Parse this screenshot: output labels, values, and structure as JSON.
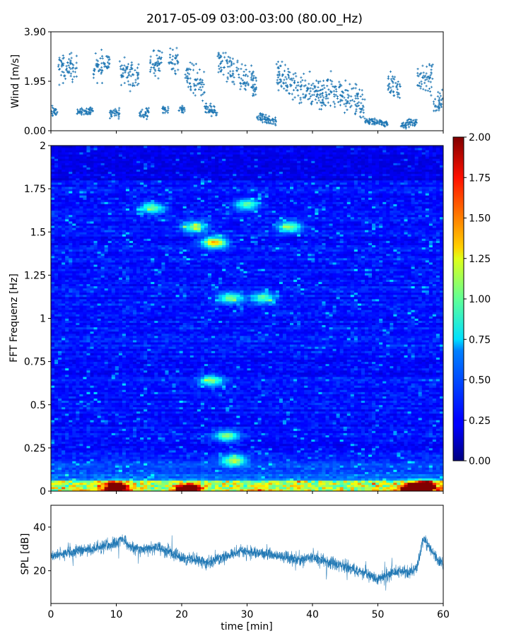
{
  "figure": {
    "title": "2017-05-09 03:00-03:00 (80.00_Hz)"
  },
  "chart_data": [
    {
      "type": "scatter",
      "panel": "wind",
      "ylabel": "Wind [m/s]",
      "xlabel": "",
      "xlim": [
        0,
        60
      ],
      "ylim": [
        0,
        3.9
      ],
      "yticks": [
        "0.00",
        "1.95",
        "3.90"
      ],
      "color": "#1f77b4",
      "segments": [
        {
          "x": [
            0,
            1
          ],
          "y": [
            0.75,
            0.75
          ],
          "spread": 0.35
        },
        {
          "x": [
            1,
            4
          ],
          "y": [
            2.4,
            2.5
          ],
          "spread": 0.8
        },
        {
          "x": [
            4,
            6.5
          ],
          "y": [
            0.75,
            0.8
          ],
          "spread": 0.2
        },
        {
          "x": [
            6.5,
            9
          ],
          "y": [
            2.5,
            2.6
          ],
          "spread": 0.8
        },
        {
          "x": [
            9,
            10.5
          ],
          "y": [
            0.7,
            0.7
          ],
          "spread": 0.3
        },
        {
          "x": [
            10.5,
            13.5
          ],
          "y": [
            2.3,
            2.2
          ],
          "spread": 0.8
        },
        {
          "x": [
            13.5,
            15
          ],
          "y": [
            0.7,
            0.7
          ],
          "spread": 0.3
        },
        {
          "x": [
            15,
            17
          ],
          "y": [
            2.6,
            2.7
          ],
          "spread": 0.8
        },
        {
          "x": [
            17,
            18
          ],
          "y": [
            0.85,
            0.85
          ],
          "spread": 0.2
        },
        {
          "x": [
            18,
            19.5
          ],
          "y": [
            2.8,
            2.7
          ],
          "spread": 0.7
        },
        {
          "x": [
            19.5,
            20.5
          ],
          "y": [
            0.85,
            0.85
          ],
          "spread": 0.2
        },
        {
          "x": [
            20.5,
            23.5
          ],
          "y": [
            2.1,
            1.8
          ],
          "spread": 0.9
        },
        {
          "x": [
            23.5,
            25.5
          ],
          "y": [
            0.9,
            0.7
          ],
          "spread": 0.3
        },
        {
          "x": [
            25.5,
            27.5
          ],
          "y": [
            2.7,
            2.4
          ],
          "spread": 0.9
        },
        {
          "x": [
            27.5,
            31.5
          ],
          "y": [
            2.2,
            1.8
          ],
          "spread": 0.9
        },
        {
          "x": [
            31.5,
            34.5
          ],
          "y": [
            0.6,
            0.3
          ],
          "spread": 0.3
        },
        {
          "x": [
            34.5,
            38
          ],
          "y": [
            2.2,
            1.7
          ],
          "spread": 0.9
        },
        {
          "x": [
            38,
            41
          ],
          "y": [
            1.6,
            1.5
          ],
          "spread": 0.9
        },
        {
          "x": [
            41,
            44.5
          ],
          "y": [
            1.5,
            1.5
          ],
          "spread": 1.0
        },
        {
          "x": [
            44.5,
            48
          ],
          "y": [
            1.4,
            1.0
          ],
          "spread": 0.9
        },
        {
          "x": [
            48,
            51.5
          ],
          "y": [
            0.4,
            0.3
          ],
          "spread": 0.2
        },
        {
          "x": [
            51.5,
            53.5
          ],
          "y": [
            1.8,
            1.6
          ],
          "spread": 0.8
        },
        {
          "x": [
            53.5,
            56
          ],
          "y": [
            0.2,
            0.35
          ],
          "spread": 0.25
        },
        {
          "x": [
            56,
            58.5
          ],
          "y": [
            2.0,
            2.2
          ],
          "spread": 1.0
        },
        {
          "x": [
            58.5,
            60
          ],
          "y": [
            0.9,
            1.2
          ],
          "spread": 0.6
        }
      ]
    },
    {
      "type": "heatmap",
      "panel": "spectrogram",
      "ylabel": "FFT Frequenz [Hz]",
      "xlabel": "",
      "xlim": [
        0,
        60
      ],
      "ylim": [
        0,
        2
      ],
      "yticks": [
        "0",
        "0.25",
        "0.5",
        "0.75",
        "1",
        "1.25",
        "1.5",
        "1.75",
        "2"
      ],
      "colormap": "jet",
      "colorbar": {
        "range": [
          0,
          2
        ],
        "ticks": [
          "0.00",
          "0.25",
          "0.50",
          "0.75",
          "1.00",
          "1.25",
          "1.50",
          "1.75",
          "2.00"
        ]
      },
      "background_level": 0.22,
      "hotspots": [
        {
          "t": 25,
          "f": 1.44,
          "value": 1.15
        },
        {
          "t": 22,
          "f": 1.53,
          "value": 0.75
        },
        {
          "t": 15.5,
          "f": 1.64,
          "value": 0.7
        },
        {
          "t": 30,
          "f": 1.66,
          "value": 0.7
        },
        {
          "t": 36.5,
          "f": 1.53,
          "value": 0.75
        },
        {
          "t": 27.5,
          "f": 1.12,
          "value": 0.7
        },
        {
          "t": 32.5,
          "f": 1.12,
          "value": 0.65
        },
        {
          "t": 24.5,
          "f": 0.64,
          "value": 0.7
        },
        {
          "t": 27,
          "f": 0.32,
          "value": 0.75
        },
        {
          "t": 28,
          "f": 0.18,
          "value": 0.8
        },
        {
          "t": 10,
          "f": 0.02,
          "value": 1.7
        },
        {
          "t": 21,
          "f": 0.01,
          "value": 1.7
        },
        {
          "t": 55.5,
          "f": 0.01,
          "value": 1.85
        },
        {
          "t": 57,
          "f": 0.03,
          "value": 1.6
        }
      ]
    },
    {
      "type": "area",
      "panel": "spl",
      "ylabel": "SPL [dB]",
      "xlabel": "time [min]",
      "xlim": [
        0,
        60
      ],
      "ylim": [
        5,
        50
      ],
      "yticks": [
        "20",
        "40"
      ],
      "xticks": [
        "0",
        "10",
        "20",
        "30",
        "40",
        "50",
        "60"
      ],
      "color": "#1f77b4",
      "x": [
        0,
        2,
        4,
        6,
        8,
        10,
        11,
        12,
        14,
        16,
        18,
        20,
        22,
        24,
        26,
        28,
        30,
        32,
        34,
        36,
        38,
        40,
        42,
        44,
        46,
        48,
        50,
        52,
        54,
        55,
        56,
        57,
        58,
        59,
        60
      ],
      "y": [
        27,
        28,
        29,
        30,
        31,
        33,
        35,
        31,
        30,
        31,
        29,
        26,
        25,
        24,
        26,
        28,
        29,
        28,
        27,
        26,
        25,
        26,
        24,
        23,
        21,
        19,
        16,
        19,
        20,
        19,
        22,
        35,
        30,
        26,
        23
      ],
      "spread": 5
    }
  ]
}
